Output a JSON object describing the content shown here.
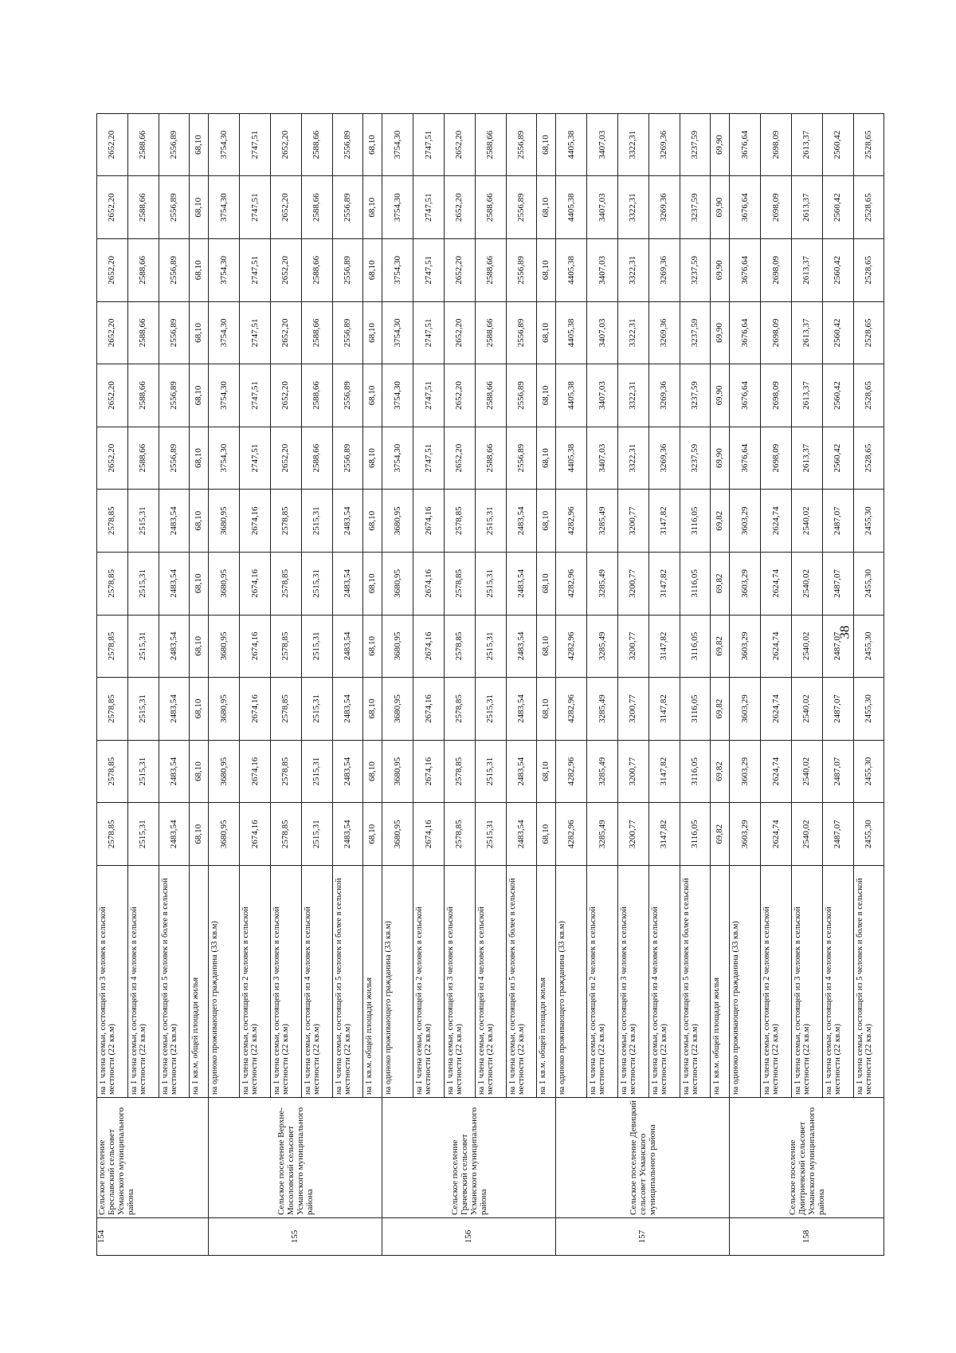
{
  "page_number": "38",
  "groups": [
    {
      "num": "154",
      "name": "Сельское поселение Бреславский сельсовет Усманского муниципального района",
      "continued": true,
      "rows": [
        {
          "desc": "на 1 члена семьи, состоящей из 3 человек в сельской местности  (22 кв.м)",
          "values": [
            "2578,85",
            "2578,85",
            "2578,85",
            "2578,85",
            "2578,85",
            "2578,85",
            "2652,20",
            "2652,20",
            "2652,20",
            "2652,20",
            "2652,20",
            "2652,20"
          ]
        },
        {
          "desc": "на 1 члена семьи, состоящей из 4 человек в сельской местности  (22 кв.м)",
          "values": [
            "2515,31",
            "2515,31",
            "2515,31",
            "2515,31",
            "2515,31",
            "2515,31",
            "2588,66",
            "2588,66",
            "2588,66",
            "2588,66",
            "2588,66",
            "2588,66"
          ]
        },
        {
          "desc": "на 1 члена семьи, состоящей из 5 человек и более в сельской местности (22 кв.м)",
          "values": [
            "2483,54",
            "2483,54",
            "2483,54",
            "2483,54",
            "2483,54",
            "2483,54",
            "2556,89",
            "2556,89",
            "2556,89",
            "2556,89",
            "2556,89",
            "2556,89"
          ]
        },
        {
          "desc": "на 1 кв.м. общей площади жилья",
          "values": [
            "68,10",
            "68,10",
            "68,10",
            "68,10",
            "68,10",
            "68,10",
            "68,10",
            "68,10",
            "68,10",
            "68,10",
            "68,10",
            "68,10"
          ]
        }
      ]
    },
    {
      "num": "155",
      "name": "Сельское поселение Верхне-Мосоловский сельсовет Усманского муниципального района",
      "rows": [
        {
          "desc": "на одиноко проживающего гражданина (33 кв.м)",
          "values": [
            "3680,95",
            "3680,95",
            "3680,95",
            "3680,95",
            "3680,95",
            "3680,95",
            "3754,30",
            "3754,30",
            "3754,30",
            "3754,30",
            "3754,30",
            "3754,30"
          ]
        },
        {
          "desc": "на 1 члена семьи, состоящей из 2 человек в сельской местности  (22 кв.м)",
          "values": [
            "2674,16",
            "2674,16",
            "2674,16",
            "2674,16",
            "2674,16",
            "2674,16",
            "2747,51",
            "2747,51",
            "2747,51",
            "2747,51",
            "2747,51",
            "2747,51"
          ]
        },
        {
          "desc": "на 1 члена семьи, состоящей из 3 человек в сельской местности  (22 кв.м)",
          "values": [
            "2578,85",
            "2578,85",
            "2578,85",
            "2578,85",
            "2578,85",
            "2578,85",
            "2652,20",
            "2652,20",
            "2652,20",
            "2652,20",
            "2652,20",
            "2652,20"
          ]
        },
        {
          "desc": "на 1 члена семьи, состоящей из 4 человек в сельской местности  (22 кв.м)",
          "values": [
            "2515,31",
            "2515,31",
            "2515,31",
            "2515,31",
            "2515,31",
            "2515,31",
            "2588,66",
            "2588,66",
            "2588,66",
            "2588,66",
            "2588,66",
            "2588,66"
          ]
        },
        {
          "desc": "на 1 члена семьи, состоящей из 5 человек и более в сельской местности (22 кв.м)",
          "values": [
            "2483,54",
            "2483,54",
            "2483,54",
            "2483,54",
            "2483,54",
            "2483,54",
            "2556,89",
            "2556,89",
            "2556,89",
            "2556,89",
            "2556,89",
            "2556,89"
          ]
        },
        {
          "desc": "на 1 кв.м. общей площади жилья",
          "values": [
            "68,10",
            "68,10",
            "68,10",
            "68,10",
            "68,10",
            "68,10",
            "68,10",
            "68,10",
            "68,10",
            "68,10",
            "68,10",
            "68,10"
          ]
        }
      ]
    },
    {
      "num": "156",
      "name": "Сельское поселение Грачевский сельсовет Усманского муниципального района",
      "rows": [
        {
          "desc": "на одиноко проживающего гражданина (33 кв.м)",
          "values": [
            "3680,95",
            "3680,95",
            "3680,95",
            "3680,95",
            "3680,95",
            "3680,95",
            "3754,30",
            "3754,30",
            "3754,30",
            "3754,30",
            "3754,30",
            "3754,30"
          ]
        },
        {
          "desc": "на 1 члена семьи, состоящей из 2 человек в сельской местности  (22 кв.м)",
          "values": [
            "2674,16",
            "2674,16",
            "2674,16",
            "2674,16",
            "2674,16",
            "2674,16",
            "2747,51",
            "2747,51",
            "2747,51",
            "2747,51",
            "2747,51",
            "2747,51"
          ]
        },
        {
          "desc": "на 1 члена семьи, состоящей из 3 человек в сельской местности  (22 кв.м)",
          "values": [
            "2578,85",
            "2578,85",
            "2578,85",
            "2578,85",
            "2578,85",
            "2578,85",
            "2652,20",
            "2652,20",
            "2652,20",
            "2652,20",
            "2652,20",
            "2652,20"
          ]
        },
        {
          "desc": "на 1 члена семьи, состоящей из 4 человек в сельской местности  (22 кв.м)",
          "values": [
            "2515,31",
            "2515,31",
            "2515,31",
            "2515,31",
            "2515,31",
            "2515,31",
            "2588,66",
            "2588,66",
            "2588,66",
            "2588,66",
            "2588,66",
            "2588,66"
          ]
        },
        {
          "desc": "на 1 члена семьи, состоящей из 5 человек и более в сельской местности (22 кв.м)",
          "values": [
            "2483,54",
            "2483,54",
            "2483,54",
            "2483,54",
            "2483,54",
            "2483,54",
            "2556,89",
            "2556,89",
            "2556,89",
            "2556,89",
            "2556,89",
            "2556,89"
          ]
        },
        {
          "desc": "на 1 кв.м. общей площади жилья",
          "values": [
            "68,10",
            "68,10",
            "68,10",
            "68,10",
            "68,10",
            "68,10",
            "68,10",
            "68,10",
            "68,10",
            "68,10",
            "68,10",
            "68,10"
          ]
        }
      ]
    },
    {
      "num": "157",
      "name": "Сельское поселение Девицкий сельсовет Усманского муниципального района",
      "rows": [
        {
          "desc": "на одиноко проживающего гражданина (33 кв.м)",
          "values": [
            "4282,96",
            "4282,96",
            "4282,96",
            "4282,96",
            "4282,96",
            "4282,96",
            "4405,38",
            "4405,38",
            "4405,38",
            "4405,38",
            "4405,38",
            "4405,38"
          ]
        },
        {
          "desc": "на 1 члена семьи, состоящей из 2 человек в сельской местности  (22 кв.м)",
          "values": [
            "3285,49",
            "3285,49",
            "3285,49",
            "3285,49",
            "3285,49",
            "3285,49",
            "3407,03",
            "3407,03",
            "3407,03",
            "3407,03",
            "3407,03",
            "3407,03"
          ]
        },
        {
          "desc": "на 1 члена семьи, состоящей из 3 человек в сельской местности  (22 кв.м)",
          "values": [
            "3200,77",
            "3200,77",
            "3200,77",
            "3200,77",
            "3200,77",
            "3200,77",
            "3322,31",
            "3322,31",
            "3322,31",
            "3322,31",
            "3322,31",
            "3322,31"
          ]
        },
        {
          "desc": "на 1 члена семьи, состоящей из 4 человек в сельской местности  (22 кв.м)",
          "values": [
            "3147,82",
            "3147,82",
            "3147,82",
            "3147,82",
            "3147,82",
            "3147,82",
            "3269,36",
            "3269,36",
            "3269,36",
            "3269,36",
            "3269,36",
            "3269,36"
          ]
        },
        {
          "desc": "на 1 члена семьи, состоящей из 5 человек и более в сельской местности (22 кв.м)",
          "values": [
            "3116,05",
            "3116,05",
            "3116,05",
            "3116,05",
            "3116,05",
            "3116,05",
            "3237,59",
            "3237,59",
            "3237,59",
            "3237,59",
            "3237,59",
            "3237,59"
          ]
        },
        {
          "desc": "на 1 кв.м. общей площади жилья",
          "values": [
            "69,82",
            "69,82",
            "69,82",
            "69,82",
            "69,82",
            "69,82",
            "69,90",
            "69,90",
            "69,90",
            "69,90",
            "69,90",
            "69,90"
          ]
        }
      ]
    },
    {
      "num": "158",
      "name": "Сельское поселение Дмитриевский сельсовет Усманского муниципального района",
      "rows": [
        {
          "desc": "на одиноко проживающего гражданина (33 кв.м)",
          "values": [
            "3603,29",
            "3603,29",
            "3603,29",
            "3603,29",
            "3603,29",
            "3603,29",
            "3676,64",
            "3676,64",
            "3676,64",
            "3676,64",
            "3676,64",
            "3676,64"
          ]
        },
        {
          "desc": "на 1 члена семьи, состоящей из 2 человек в сельской местности  (22 кв.м)",
          "values": [
            "2624,74",
            "2624,74",
            "2624,74",
            "2624,74",
            "2624,74",
            "2624,74",
            "2698,09",
            "2698,09",
            "2698,09",
            "2698,09",
            "2698,09",
            "2698,09"
          ]
        },
        {
          "desc": "на 1 члена семьи, состоящей из 3 человек в сельской местности  (22 кв.м)",
          "values": [
            "2540,02",
            "2540,02",
            "2540,02",
            "2540,02",
            "2540,02",
            "2540,02",
            "2613,37",
            "2613,37",
            "2613,37",
            "2613,37",
            "2613,37",
            "2613,37"
          ]
        },
        {
          "desc": "на 1 члена семьи, состоящей из 4 человек в сельской местности  (22 кв.м)",
          "values": [
            "2487,07",
            "2487,07",
            "2487,07",
            "2487,07",
            "2487,07",
            "2487,07",
            "2560,42",
            "2560,42",
            "2560,42",
            "2560,42",
            "2560,42",
            "2560,42"
          ]
        },
        {
          "desc": "на 1 члена семьи, состоящей из 5 человек и более в сельской местности (22 кв.м)",
          "values": [
            "2455,30",
            "2455,30",
            "2455,30",
            "2455,30",
            "2455,30",
            "2455,30",
            "2528,65",
            "2528,65",
            "2528,65",
            "2528,65",
            "2528,65",
            "2528,65"
          ]
        }
      ]
    }
  ]
}
